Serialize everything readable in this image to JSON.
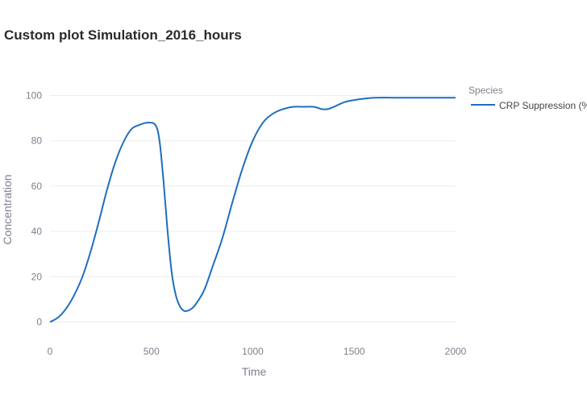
{
  "title": "Custom plot Simulation_2016_hours",
  "chart_data": {
    "type": "line",
    "title": "Custom plot Simulation_2016_hours",
    "xlabel": "Time",
    "ylabel": "Concentration",
    "xlim": [
      0,
      2000
    ],
    "ylim": [
      -8,
      108
    ],
    "xticks": [
      "0",
      "500",
      "1000",
      "1500",
      "2000"
    ],
    "yticks": [
      "0",
      "20",
      "40",
      "60",
      "80",
      "100"
    ],
    "grid": true,
    "legend": {
      "title": "Species",
      "placement": "right-top"
    },
    "series": [
      {
        "name": "CRP Suppression (%",
        "color": "#1f6ebf",
        "x": [
          0,
          40,
          80,
          120,
          160,
          200,
          240,
          280,
          320,
          360,
          400,
          440,
          480,
          520,
          540,
          560,
          580,
          600,
          620,
          640,
          660,
          680,
          700,
          720,
          760,
          800,
          850,
          900,
          950,
          1000,
          1050,
          1100,
          1150,
          1200,
          1250,
          1300,
          1340,
          1370,
          1400,
          1450,
          1500,
          1600,
          1700,
          1800,
          1900,
          2000
        ],
        "y": [
          0,
          2,
          6,
          12,
          20,
          31,
          44,
          58,
          70,
          79,
          85,
          87,
          88,
          87,
          80,
          62,
          40,
          22,
          12,
          7,
          5,
          5,
          6,
          8,
          14,
          24,
          37,
          53,
          68,
          80,
          88,
          92,
          94,
          95,
          95,
          95,
          94,
          94,
          95,
          97,
          98,
          99,
          99,
          99,
          99,
          99
        ]
      }
    ]
  }
}
